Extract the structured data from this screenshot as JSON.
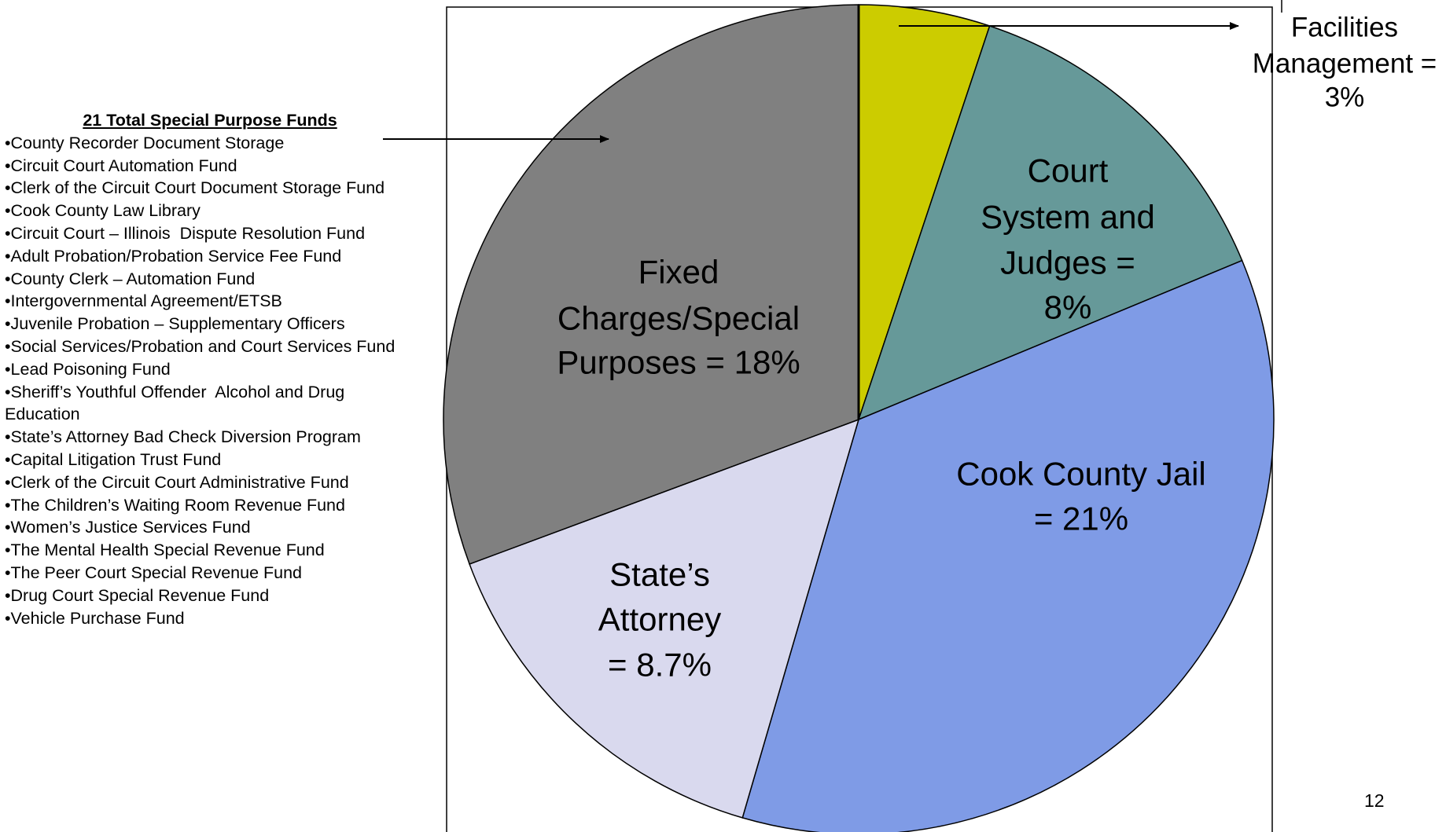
{
  "chart_data": {
    "type": "pie",
    "labels": [
      [
        "Facilities",
        "Management =",
        "3%"
      ],
      [
        "Court",
        "System and",
        "Judges =",
        "8%"
      ],
      [
        "Cook County Jail",
        "= 21%"
      ],
      [
        "State’s",
        "Attorney",
        "= 8.7%"
      ],
      [
        "Fixed",
        "Charges/Special",
        "Purposes = 18%"
      ]
    ],
    "values": [
      3,
      8,
      21,
      8.7,
      18
    ],
    "colors": [
      "#cccc00",
      "#669999",
      "#7f9be6",
      "#d9d9ee",
      "#808080"
    ],
    "funds_title": "21 Total Special Purpose Funds",
    "funds": [
      "•County Recorder Document Storage",
      "•Circuit Court Automation Fund",
      "•Clerk of the Circuit Court Document Storage Fund",
      "•Cook County Law Library",
      "•Circuit Court – Illinois  Dispute Resolution Fund",
      "•Adult Probation/Probation Service Fee Fund",
      "•County Clerk – Automation Fund",
      "•Intergovernmental Agreement/ETSB",
      "•Juvenile Probation – Supplementary Officers",
      "•Social Services/Probation and Court Services Fund",
      "•Lead Poisoning Fund",
      "•Sheriff’s Youthful Offender  Alcohol and Drug Education",
      "•State’s Attorney Bad Check Diversion Program",
      "•Capital Litigation Trust Fund",
      "•Clerk of the Circuit Court Administrative Fund",
      "•The Children’s Waiting Room Revenue Fund",
      "•Women’s Justice Services Fund",
      "•The Mental Health Special Revenue Fund",
      "•The Peer Court Special Revenue Fund",
      "•Drug Court Special Revenue Fund",
      "•Vehicle Purchase Fund"
    ],
    "page_number": "12"
  }
}
